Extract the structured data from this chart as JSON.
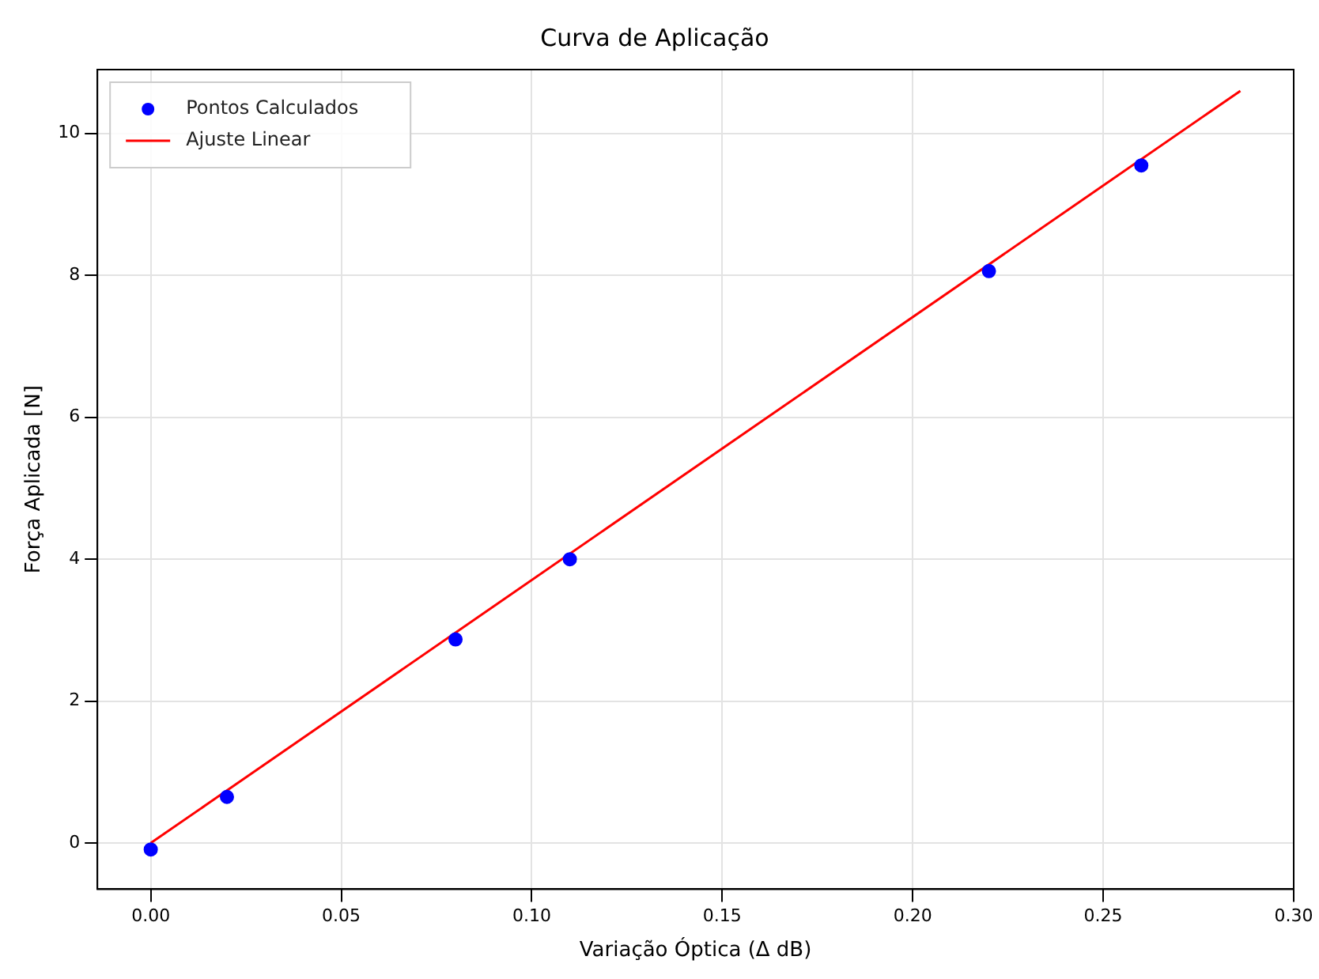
{
  "chart_data": {
    "type": "scatter",
    "title": "Curva de Aplicação",
    "xlabel": "Variação Óptica (Δ dB)",
    "ylabel": "Força Aplicada [N]",
    "xlim": [
      -0.014,
      0.3
    ],
    "ylim": [
      -0.65,
      10.9
    ],
    "xticks": [
      {
        "value": 0,
        "label": "0.00"
      },
      {
        "value": 0.05,
        "label": "0.05"
      },
      {
        "value": 0.1,
        "label": "0.10"
      },
      {
        "value": 0.15,
        "label": "0.15"
      },
      {
        "value": 0.2,
        "label": "0.20"
      },
      {
        "value": 0.25,
        "label": "0.25"
      },
      {
        "value": 0.3,
        "label": "0.30"
      }
    ],
    "yticks": [
      0,
      2,
      4,
      6,
      8,
      10
    ],
    "grid": true,
    "legend": "top left",
    "series": [
      {
        "name": "Pontos Calculados",
        "color": "#0000ff",
        "marker": "circle",
        "x": [
          0,
          0.02,
          0.08,
          0.11,
          0.22,
          0.26
        ],
        "values": [
          -0.09,
          0.65,
          2.87,
          4.0,
          8.06,
          9.55
        ]
      },
      {
        "name": "Ajuste Linear",
        "color": "#ff0000",
        "type": "line",
        "x": [
          0,
          0.286
        ],
        "values": [
          0,
          10.6
        ]
      }
    ]
  }
}
